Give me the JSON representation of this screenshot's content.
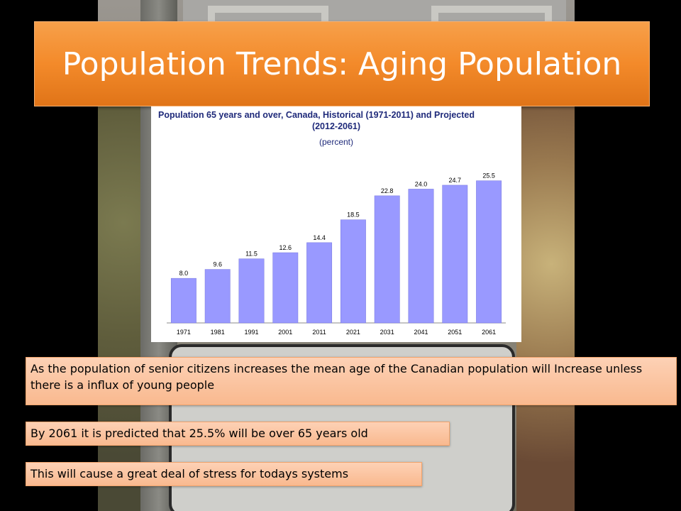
{
  "slide": {
    "title": "Population Trends: Aging Population"
  },
  "callouts": {
    "mean_age": "As the population of senior citizens increases the mean age of the Canadian population will Increase unless there is a influx of young people",
    "prediction": "By 2061 it is predicted that 25.5% will be over 65 years old",
    "stress": "This will cause a great deal of stress for todays systems"
  },
  "colors": {
    "title_orange": "#f38a2a",
    "callout_peach": "#fbc6a3",
    "bar_color": "#9999ff",
    "chart_title_blue": "#1f2a7a"
  },
  "chart_data": {
    "type": "bar",
    "title_line1": "Population 65 years and over, Canada, Historical (1971-2011) and Projected",
    "title_line2": "(2012-2061)",
    "subtitle": "(percent)",
    "categories": [
      "1971",
      "1981",
      "1991",
      "2001",
      "2011",
      "2021",
      "2031",
      "2041",
      "2051",
      "2061"
    ],
    "values": [
      8.0,
      9.6,
      11.5,
      12.6,
      14.4,
      18.5,
      22.8,
      24.0,
      24.7,
      25.5
    ],
    "value_labels": [
      "8.0",
      "9.6",
      "11.5",
      "12.6",
      "14.4",
      "18.5",
      "22.8",
      "24.0",
      "24.7",
      "25.5"
    ],
    "ylim": [
      0,
      28
    ],
    "grid": false,
    "legend": "none"
  }
}
